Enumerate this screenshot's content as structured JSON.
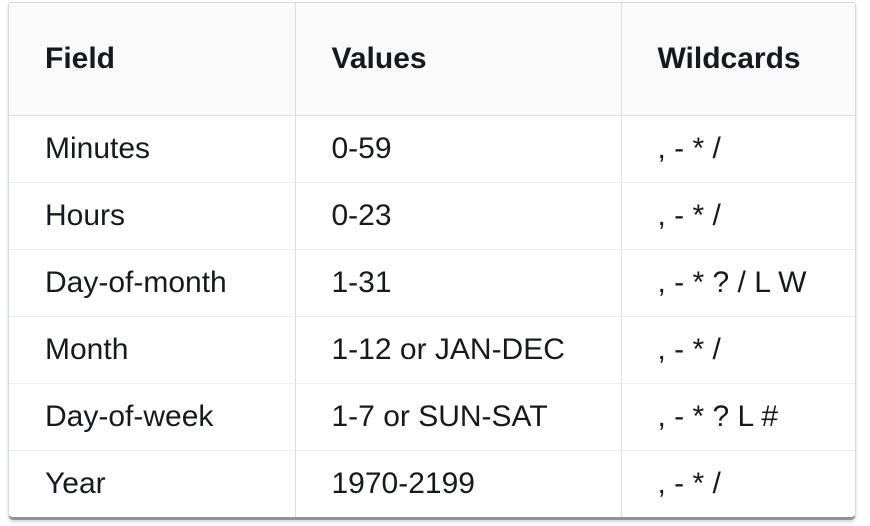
{
  "table": {
    "name": "cron-fields-reference-table",
    "columns": [
      {
        "key": "field",
        "label": "Field"
      },
      {
        "key": "values",
        "label": "Values"
      },
      {
        "key": "wildcards",
        "label": "Wildcards"
      }
    ],
    "rows": [
      {
        "field": "Minutes",
        "values": "0-59",
        "wildcards": ", - * /"
      },
      {
        "field": "Hours",
        "values": "0-23",
        "wildcards": ", - * /"
      },
      {
        "field": "Day-of-month",
        "values": "1-31",
        "wildcards": ", - * ? / L W"
      },
      {
        "field": "Month",
        "values": "1-12 or JAN-DEC",
        "wildcards": ", - * /"
      },
      {
        "field": "Day-of-week",
        "values": "1-7 or SUN-SAT",
        "wildcards": ", - * ? L #"
      },
      {
        "field": "Year",
        "values": "1970-2199",
        "wildcards": ", - * /"
      }
    ],
    "colors": {
      "header_bg": "#fafafa",
      "text": "#16191f",
      "outer_border": "#d5dbdb",
      "row_separator": "#eaeded",
      "column_separator": "#d9dede",
      "bottom_edge": "#8d959a"
    }
  }
}
